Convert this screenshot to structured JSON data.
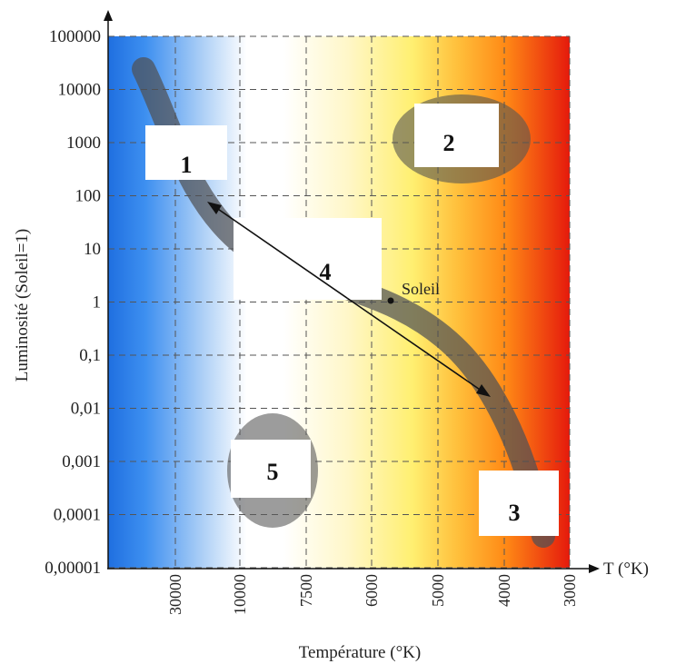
{
  "chart_data": {
    "type": "diagram",
    "y_axis": {
      "label": "Luminosité (Soleil=1)",
      "scale": "log",
      "ticks": [
        "100000",
        "10000",
        "1000",
        "100",
        "10",
        "1",
        "0,1",
        "0,01",
        "0,001",
        "0,0001",
        "0,00001"
      ]
    },
    "x_axis": {
      "label": "Température (°K)",
      "end_label": "T (°K)",
      "ticks": [
        "30000",
        "10000",
        "7500",
        "6000",
        "5000",
        "4000",
        "3000"
      ],
      "direction": "decreasing"
    },
    "grid": true,
    "background_gradient": [
      "#1f6fe0",
      "#ffffff",
      "#fff6a0",
      "#ff9a00",
      "#e8140a"
    ],
    "regions": [
      {
        "label": "1"
      },
      {
        "label": "2"
      },
      {
        "label": "3"
      },
      {
        "label": "4"
      },
      {
        "label": "5"
      }
    ],
    "sun": {
      "label": "Soleil",
      "luminosity": 1,
      "temperature": 5800
    }
  }
}
